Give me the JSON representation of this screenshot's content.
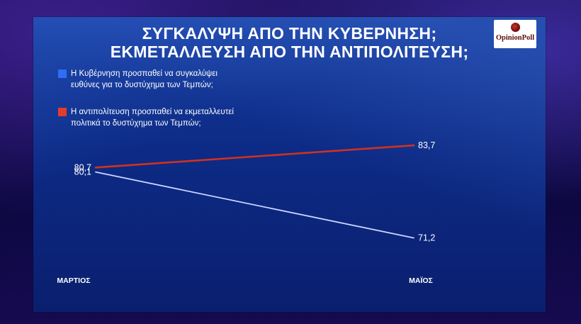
{
  "title": {
    "line1": "ΣΥΓΚΑΛΥΨΗ ΑΠΟ ΤΗΝ ΚΥΒΕΡΝΗΣΗ;",
    "line2": "ΕΚΜΕΤΑΛΛΕΥΣΗ ΑΠΟ ΤΗΝ ΑΝΤΙΠΟΛΙΤΕΥΣΗ;"
  },
  "logo": {
    "text": "OpinionPoll"
  },
  "colors": {
    "series_blue": "#2f6ef5",
    "series_red": "#e53b2c",
    "line_blue": "#c9d6ff",
    "line_red": "#d0321f"
  },
  "chart_data": {
    "type": "line",
    "x": [
      "ΜΑΡΤΙΟΣ",
      "ΜΑΪΟΣ"
    ],
    "series": [
      {
        "name": "Η Κυβέρνηση προσπαθεί να συγκαλύψει ευθύνες για το δυστύχημα των Τεμπών;",
        "name_lines": [
          "Η Κυβέρνηση προσπαθεί να συγκαλύψει",
          "ευθύνες για το δυστύχημα των Τεμπών;"
        ],
        "values": [
          80.1,
          71.2
        ],
        "labels": [
          "80,1",
          "71,2"
        ]
      },
      {
        "name": "Η αντιπολίτευση προσπαθεί να εκμεταλλευτεί πολιτικά το δυστύχημα των Τεμπών;",
        "name_lines": [
          "Η αντιπολίτευση προσπαθεί να εκμεταλλευτεί",
          "πολιτικά το δυστύχημα των Τεμπών;"
        ],
        "values": [
          80.7,
          83.7
        ],
        "labels": [
          "80,7",
          "83,7"
        ]
      }
    ],
    "ylim": [
      68,
      86
    ],
    "grid": false,
    "legend": "top-left"
  }
}
